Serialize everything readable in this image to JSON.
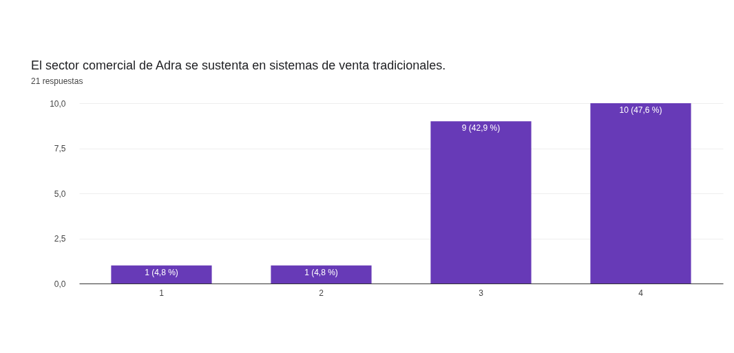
{
  "chart_data": {
    "type": "bar",
    "title": "El sector comercial de Adra se sustenta en sistemas de venta tradicionales.",
    "subtitle": "21 respuestas",
    "categories": [
      "1",
      "2",
      "3",
      "4"
    ],
    "values": [
      1,
      1,
      9,
      10
    ],
    "value_labels": [
      "1 (4,8 %)",
      "1 (4,8 %)",
      "9 (42,9 %)",
      "10 (47,6 %)"
    ],
    "color": "#673ab7",
    "ylim": [
      0,
      10
    ],
    "yticks": [
      {
        "value": 0,
        "label": "0,0"
      },
      {
        "value": 2.5,
        "label": "2,5"
      },
      {
        "value": 5,
        "label": "5,0"
      },
      {
        "value": 7.5,
        "label": "7,5"
      },
      {
        "value": 10,
        "label": "10,0"
      }
    ],
    "grid": "y"
  }
}
